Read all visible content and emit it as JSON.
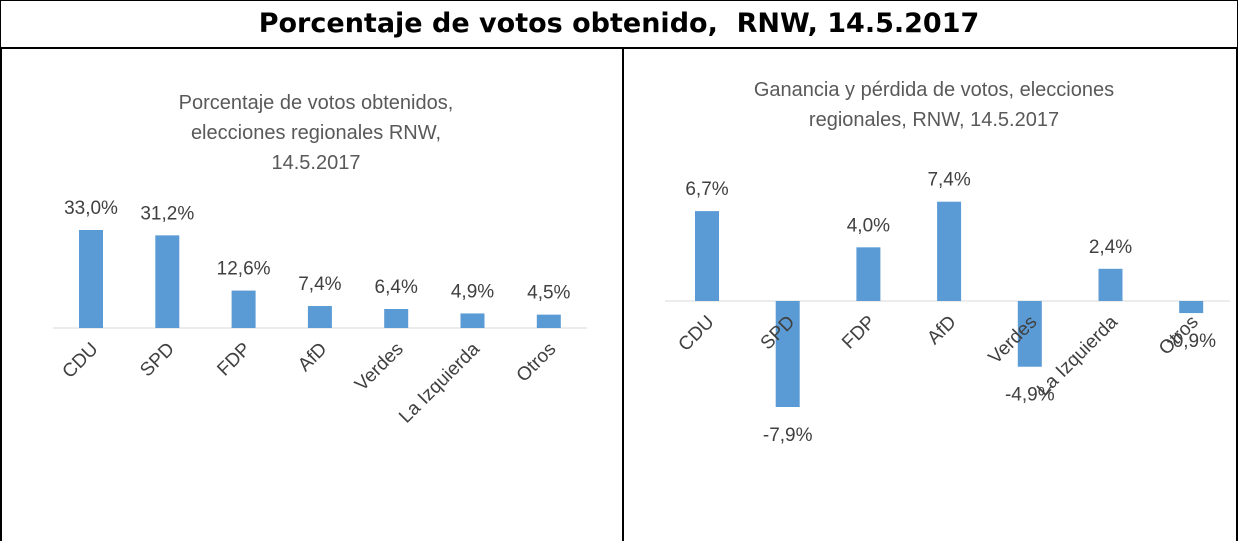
{
  "header": {
    "title": "Porcentaje de votos obtenido,  RNW, 14.5.2017"
  },
  "chart_data": [
    {
      "type": "bar",
      "title": "Porcentaje de votos obtenidos, elecciones regionales RNW, 14.5.2017",
      "categories": [
        "CDU",
        "SPD",
        "FDP",
        "AfD",
        "Verdes",
        "La Izquierda",
        "Otros"
      ],
      "values": [
        33.0,
        31.2,
        12.6,
        7.4,
        6.4,
        4.9,
        4.5
      ],
      "value_labels": [
        "33,0%",
        "31,2%",
        "12,6%",
        "7,4%",
        "6,4%",
        "4,9%",
        "4,5%"
      ],
      "color": "#5b9bd5"
    },
    {
      "type": "bar",
      "title": "Ganancia y pérdida de votos, elecciones regionales, RNW, 14.5.2017",
      "categories": [
        "CDU",
        "SPD",
        "FDP",
        "AfD",
        "Verdes",
        "La Izquierda",
        "Otros"
      ],
      "values": [
        6.7,
        -7.9,
        4.0,
        7.4,
        -4.9,
        2.4,
        -0.9
      ],
      "value_labels": [
        "6,7%",
        "-7,9%",
        "4,0%",
        "7,4%",
        "-4,9%",
        "2,4%",
        "-0,9%"
      ],
      "color": "#5b9bd5"
    }
  ]
}
